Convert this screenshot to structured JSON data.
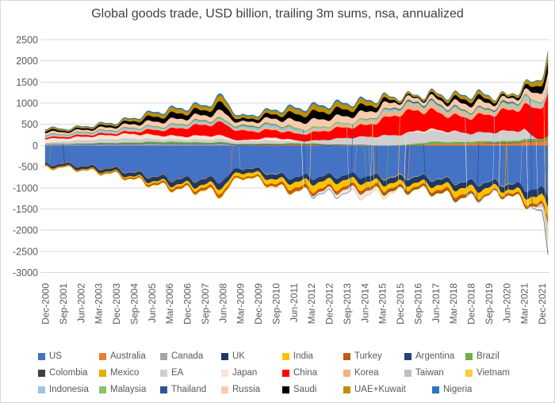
{
  "chart_data": {
    "type": "area",
    "stacked": true,
    "title": "Global goods trade, USD billion, trailing 3m sums, nsa, annualized",
    "values_unit": "USD billion",
    "ylim": [
      -3000,
      2500
    ],
    "y_ticks": [
      2500,
      2000,
      1500,
      1000,
      500,
      0,
      -500,
      -1000,
      -1500,
      -2000,
      -2500,
      -3000
    ],
    "grid": true,
    "legend_position": "bottom",
    "legend_row_breaks": [
      8,
      8,
      7
    ],
    "x_months_per_tick": 9,
    "x_extra_months": 3,
    "sampling": "values estimated at x-axis tick dates plus chart end (~Mar-2022)",
    "x_tick_labels": [
      "Dec-2000",
      "Sep-2001",
      "Jun-2002",
      "Mar-2003",
      "Dec-2003",
      "Sep-2004",
      "Jun-2005",
      "Mar-2006",
      "Dec-2006",
      "Sep-2007",
      "Jun-2008",
      "Mar-2009",
      "Dec-2009",
      "Sep-2010",
      "Jun-2011",
      "Mar-2012",
      "Dec-2012",
      "Sep-2013",
      "Jun-2014",
      "Mar-2015",
      "Dec-2015",
      "Sep-2016",
      "Jun-2017",
      "Mar-2018",
      "Dec-2018",
      "Sep-2019",
      "Jun-2020",
      "Mar-2021",
      "Dec-2021"
    ],
    "series": [
      {
        "name": "US",
        "color": "#4472C4",
        "values": [
          -450,
          -430,
          -480,
          -520,
          -550,
          -640,
          -720,
          -780,
          -800,
          -790,
          -820,
          -520,
          -560,
          -680,
          -740,
          -740,
          -720,
          -700,
          -730,
          -740,
          -740,
          -730,
          -780,
          -840,
          -880,
          -860,
          -880,
          -1000,
          -1080,
          -1150
        ]
      },
      {
        "name": "Australia",
        "color": "#ED7D31",
        "values": [
          -5,
          -8,
          -8,
          -12,
          -15,
          -15,
          -12,
          -10,
          -10,
          -12,
          -5,
          5,
          15,
          20,
          25,
          20,
          5,
          15,
          10,
          -5,
          -10,
          10,
          40,
          30,
          50,
          60,
          50,
          80,
          100,
          115
        ]
      },
      {
        "name": "Canada",
        "color": "#A5A5A5",
        "values": [
          35,
          30,
          25,
          30,
          30,
          35,
          45,
          40,
          35,
          30,
          45,
          -5,
          -15,
          -20,
          -5,
          -5,
          -10,
          -5,
          5,
          -15,
          -20,
          -15,
          -15,
          -15,
          -10,
          -15,
          -25,
          5,
          10,
          20
        ]
      },
      {
        "name": "UK",
        "color": "#1F3864",
        "values": [
          -50,
          -55,
          -60,
          -65,
          -75,
          -90,
          -100,
          -110,
          -120,
          -130,
          -140,
          -90,
          -100,
          -120,
          -110,
          -120,
          -120,
          -110,
          -130,
          -120,
          -130,
          -140,
          -130,
          -130,
          -140,
          -130,
          -120,
          -150,
          -190,
          -210
        ]
      },
      {
        "name": "India",
        "color": "#FFC000",
        "values": [
          -8,
          -10,
          -10,
          -15,
          -20,
          -30,
          -40,
          -50,
          -60,
          -75,
          -110,
          -80,
          -90,
          -110,
          -130,
          -160,
          -160,
          -150,
          -130,
          -120,
          -110,
          -90,
          -110,
          -140,
          -160,
          -140,
          -70,
          -130,
          -190,
          -230
        ]
      },
      {
        "name": "Turkey",
        "color": "#C55A11",
        "values": [
          -15,
          -8,
          -10,
          -15,
          -20,
          -25,
          -35,
          -40,
          -45,
          -50,
          -60,
          -25,
          -35,
          -55,
          -80,
          -70,
          -65,
          -70,
          -70,
          -60,
          -50,
          -45,
          -55,
          -70,
          -45,
          -25,
          -45,
          -45,
          -45,
          -100
        ]
      },
      {
        "name": "Argentina",
        "color": "#264478",
        "values": [
          2,
          5,
          10,
          12,
          12,
          10,
          10,
          10,
          10,
          8,
          10,
          12,
          12,
          10,
          8,
          10,
          10,
          5,
          5,
          -2,
          -2,
          3,
          -5,
          -8,
          -8,
          10,
          12,
          10,
          10,
          8
        ]
      },
      {
        "name": "Brazil",
        "color": "#70AD47",
        "values": [
          -2,
          5,
          10,
          20,
          25,
          30,
          38,
          40,
          40,
          35,
          30,
          20,
          20,
          15,
          25,
          25,
          18,
          5,
          0,
          -5,
          15,
          40,
          55,
          50,
          45,
          35,
          40,
          50,
          55,
          60
        ]
      },
      {
        "name": "Colombia",
        "color": "#404040",
        "values": [
          2,
          0,
          -1,
          -1,
          -1,
          -1,
          -2,
          -2,
          -2,
          -3,
          -3,
          -2,
          -2,
          -2,
          -3,
          -4,
          -4,
          -5,
          -6,
          -12,
          -14,
          -10,
          -8,
          -6,
          -6,
          -8,
          -8,
          -10,
          -12,
          -15
        ]
      },
      {
        "name": "Mexico",
        "color": "#E6AC00",
        "values": [
          -8,
          -10,
          -8,
          -8,
          -8,
          -10,
          -12,
          -12,
          -12,
          -14,
          -18,
          -10,
          -8,
          -5,
          -5,
          -2,
          -2,
          -5,
          -5,
          -10,
          -15,
          -12,
          -10,
          -12,
          -12,
          -5,
          0,
          -10,
          -20,
          -30
        ]
      },
      {
        "name": "EA",
        "color": "#D0CECE",
        "values": [
          30,
          55,
          80,
          85,
          95,
          95,
          70,
          60,
          60,
          75,
          70,
          60,
          75,
          70,
          40,
          60,
          110,
          160,
          190,
          230,
          250,
          270,
          240,
          230,
          200,
          210,
          230,
          220,
          -100,
          -420
        ]
      },
      {
        "name": "Japan",
        "color": "#FBE5D6",
        "values": [
          95,
          75,
          80,
          85,
          95,
          110,
          90,
          80,
          75,
          90,
          75,
          20,
          40,
          75,
          30,
          -30,
          -60,
          -90,
          -110,
          -70,
          -20,
          40,
          40,
          20,
          -10,
          -15,
          10,
          10,
          -80,
          -160
        ]
      },
      {
        "name": "China",
        "color": "#FF0000",
        "values": [
          30,
          35,
          40,
          40,
          40,
          55,
          110,
          150,
          215,
          260,
          300,
          220,
          180,
          180,
          160,
          180,
          230,
          250,
          260,
          380,
          500,
          480,
          420,
          360,
          380,
          420,
          480,
          550,
          800,
          950
        ]
      },
      {
        "name": "Korea",
        "color": "#F4B183",
        "values": [
          15,
          12,
          10,
          12,
          15,
          25,
          25,
          20,
          18,
          18,
          10,
          25,
          40,
          40,
          30,
          30,
          40,
          50,
          60,
          85,
          90,
          90,
          80,
          70,
          70,
          50,
          45,
          60,
          20,
          -40
        ]
      },
      {
        "name": "Taiwan",
        "color": "#BFBFBF",
        "values": [
          10,
          12,
          15,
          15,
          15,
          15,
          12,
          15,
          18,
          22,
          15,
          20,
          25,
          25,
          20,
          25,
          30,
          35,
          40,
          50,
          50,
          50,
          55,
          55,
          50,
          45,
          55,
          65,
          65,
          60
        ]
      },
      {
        "name": "Vietnam",
        "color": "#FFCD33",
        "values": [
          -1,
          -1,
          -2,
          -3,
          -4,
          -4,
          -4,
          -4,
          -5,
          -8,
          -10,
          -8,
          -10,
          -10,
          -8,
          0,
          5,
          0,
          5,
          -5,
          0,
          8,
          5,
          8,
          5,
          10,
          12,
          8,
          5,
          -10
        ]
      },
      {
        "name": "Indonesia",
        "color": "#9DC3E6",
        "values": [
          25,
          22,
          23,
          25,
          25,
          25,
          25,
          28,
          30,
          30,
          25,
          25,
          30,
          30,
          35,
          25,
          5,
          0,
          -5,
          8,
          8,
          8,
          15,
          10,
          -5,
          -5,
          15,
          25,
          35,
          40
        ]
      },
      {
        "name": "Malaysia",
        "color": "#8CC168",
        "values": [
          16,
          14,
          15,
          18,
          20,
          22,
          25,
          28,
          30,
          30,
          35,
          30,
          35,
          35,
          40,
          35,
          30,
          25,
          25,
          25,
          25,
          22,
          25,
          28,
          28,
          25,
          25,
          35,
          40,
          45
        ]
      },
      {
        "name": "Thailand",
        "color": "#2F5597",
        "values": [
          5,
          3,
          4,
          5,
          6,
          5,
          2,
          3,
          8,
          12,
          5,
          15,
          15,
          10,
          8,
          -5,
          -5,
          -2,
          5,
          10,
          25,
          30,
          25,
          20,
          15,
          20,
          30,
          10,
          -15,
          -40
        ]
      },
      {
        "name": "Russia",
        "color": "#F8CBAD",
        "values": [
          60,
          50,
          50,
          60,
          70,
          85,
          105,
          120,
          125,
          115,
          170,
          80,
          105,
          130,
          160,
          175,
          165,
          155,
          170,
          150,
          110,
          85,
          100,
          120,
          160,
          130,
          90,
          110,
          230,
          300
        ]
      },
      {
        "name": "Saudi",
        "color": "#000000",
        "values": [
          45,
          35,
          35,
          45,
          50,
          70,
          110,
          130,
          125,
          115,
          190,
          60,
          80,
          105,
          160,
          180,
          170,
          160,
          150,
          100,
          40,
          25,
          60,
          85,
          110,
          90,
          30,
          80,
          200,
          260
        ]
      },
      {
        "name": "UAE+Kuwait",
        "color": "#BF8F00",
        "values": [
          35,
          30,
          30,
          35,
          40,
          55,
          80,
          95,
          95,
          90,
          140,
          55,
          65,
          80,
          110,
          125,
          120,
          115,
          110,
          80,
          45,
          35,
          55,
          70,
          85,
          75,
          35,
          70,
          140,
          190
        ]
      },
      {
        "name": "Nigeria",
        "color": "#2E75B6",
        "values": [
          12,
          10,
          10,
          12,
          15,
          18,
          25,
          28,
          28,
          25,
          35,
          18,
          22,
          25,
          35,
          35,
          32,
          30,
          28,
          18,
          8,
          5,
          12,
          18,
          20,
          15,
          3,
          10,
          15,
          20
        ]
      }
    ]
  },
  "colors": {
    "background": "#FFFFFF",
    "grid": "#D9D9D9",
    "axis_text": "#595959",
    "title_text": "#404040",
    "frame": "#D9D9D9"
  }
}
